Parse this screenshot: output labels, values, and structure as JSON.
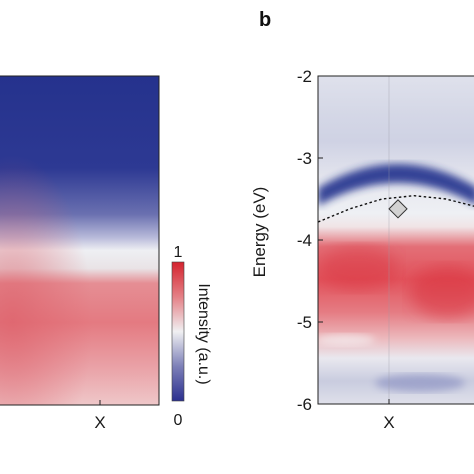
{
  "chart_data": [
    {
      "type": "heatmap",
      "panel": "a",
      "xlabel": "",
      "ylabel": "",
      "xtick_labels": [
        "X"
      ],
      "image_colormap": {
        "top": "#26338f",
        "transition": "#ededf2",
        "bottom": "#e47b82"
      },
      "colorbar": {
        "label": "Intensity (a.u.)",
        "min_label": "0",
        "max_label": "1",
        "min": 0,
        "max": 1,
        "colors": [
          "#2b2f8f",
          "#7d80b8",
          "#f0f0f2",
          "#e48086",
          "#d4232e"
        ]
      },
      "grid": false
    },
    {
      "type": "heatmap",
      "panel": "b",
      "panel_label": "b",
      "ylabel": "Energy (eV)",
      "ylim": [
        -6,
        -2
      ],
      "ytick_labels": [
        "-2",
        "-3",
        "-4",
        "-5",
        "-6"
      ],
      "xtick_labels": [
        "X"
      ],
      "band_dispersion_energies": [
        -3.78,
        -3.62,
        -3.5,
        -3.46,
        -3.5,
        -3.6
      ],
      "marker": {
        "shape": "diamond",
        "energy": -3.62
      },
      "grid": false
    }
  ]
}
